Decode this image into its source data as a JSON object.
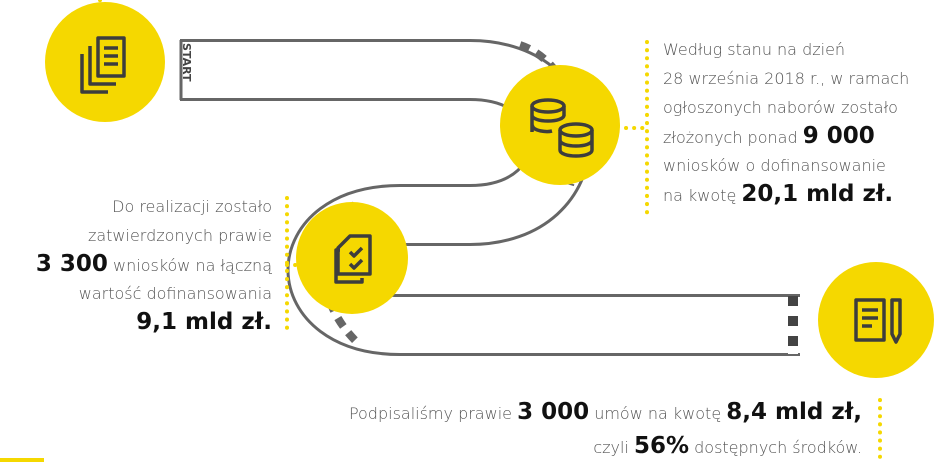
{
  "start": "START",
  "block_1": {
    "lines": [
      [
        "Według stanu na dzień"
      ],
      [
        "28 września 2018 r., w ramach"
      ],
      [
        "ogłoszonych naborów zostało"
      ],
      [
        "złożonych ponad ",
        "9 000"
      ],
      [
        "wniosków o dofinansowanie"
      ],
      [
        "na kwotę ",
        "20,1 mld zł."
      ]
    ]
  },
  "block_2": {
    "lines": [
      [
        "Do realizacji zostało"
      ],
      [
        "zatwierdzonych prawie"
      ],
      [
        "3 300",
        " wniosków na łączną"
      ],
      [
        "wartość dofinansowania"
      ],
      [
        "9,1 mld zł."
      ]
    ]
  },
  "block_3": {
    "lines": [
      [
        "Podpisaliśmy prawie ",
        "3 000",
        " umów na kwotę ",
        "8,4 mld zł,"
      ],
      [
        "czyli ",
        "56%",
        " dostępnych środków."
      ]
    ]
  }
}
